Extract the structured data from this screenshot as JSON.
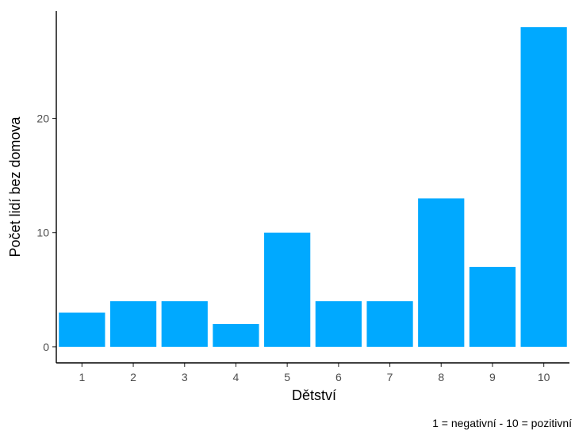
{
  "chart_data": {
    "type": "bar",
    "categories": [
      "1",
      "2",
      "3",
      "4",
      "5",
      "6",
      "7",
      "8",
      "9",
      "10"
    ],
    "values": [
      3,
      4,
      4,
      2,
      10,
      4,
      4,
      13,
      7,
      28
    ],
    "title": "",
    "xlabel": "Dětství",
    "ylabel": "Počet lidí bez domova",
    "caption": "1 = negativní - 10 = pozitivní",
    "ylim": [
      -1.4,
      29.4
    ],
    "yticks": [
      0,
      10,
      20
    ],
    "grid": false,
    "legend": "none",
    "bar_color": "#00a9ff"
  }
}
